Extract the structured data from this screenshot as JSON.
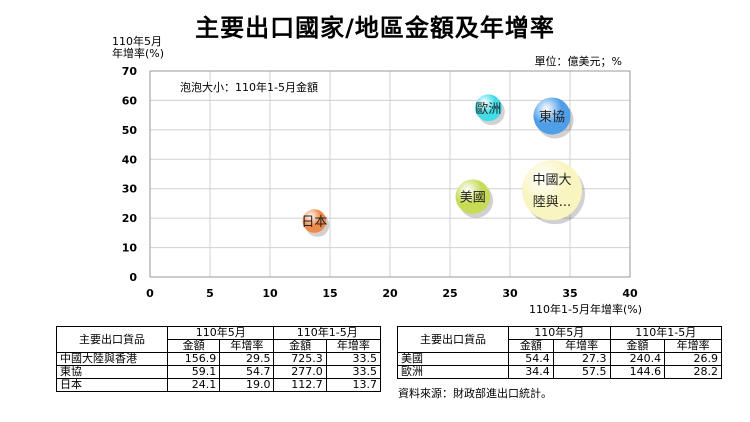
{
  "title": "主要出口國家/地區金額及年增率",
  "unit_note": "單位：億美元；%",
  "chart_data": {
    "type": "scatter",
    "title": "主要出口國家/地區金額及年增率",
    "ylabel_lines": [
      "110年5月",
      "年增率(%)"
    ],
    "xlabel": "110年1-5月年增率(%)",
    "annotation": "泡泡大小：110年1-5月金額",
    "xlim": [
      0,
      40
    ],
    "ylim": [
      0,
      70
    ],
    "xticks": [
      0,
      5,
      10,
      15,
      20,
      25,
      30,
      35,
      40
    ],
    "yticks": [
      0,
      10,
      20,
      30,
      40,
      50,
      60,
      70
    ],
    "grid": true,
    "points": [
      {
        "label": "日本",
        "lines": [
          "日本"
        ],
        "x": 13.7,
        "y": 19.0,
        "size": 112.7,
        "color": "#f08a4b"
      },
      {
        "label": "美國",
        "lines": [
          "美國"
        ],
        "x": 26.9,
        "y": 27.3,
        "size": 240.4,
        "color": "#c7db57"
      },
      {
        "label": "歐洲",
        "lines": [
          "歐洲"
        ],
        "x": 28.2,
        "y": 57.5,
        "size": 144.6,
        "color": "#40dce8"
      },
      {
        "label": "東協",
        "lines": [
          "東協"
        ],
        "x": 33.5,
        "y": 54.7,
        "size": 277.0,
        "color": "#4f9ee8"
      },
      {
        "label": "中國大陸與...",
        "lines": [
          "中國大",
          "陸與..."
        ],
        "x": 33.5,
        "y": 29.5,
        "size": 725.3,
        "color": "#f8f5c0"
      }
    ]
  },
  "tables": {
    "left": {
      "corner": "主要出口貨品",
      "group1": "110年5月",
      "group2": "110年1-5月",
      "subheaders": [
        "金額",
        "年增率",
        "金額",
        "年增率"
      ],
      "rows": [
        [
          "中國大陸與香港",
          "156.9",
          "29.5",
          "725.3",
          "33.5"
        ],
        [
          "東協",
          "59.1",
          "54.7",
          "277.0",
          "33.5"
        ],
        [
          "日本",
          "24.1",
          "19.0",
          "112.7",
          "13.7"
        ]
      ]
    },
    "right": {
      "corner": "主要出口貨品",
      "group1": "110年5月",
      "group2": "110年1-5月",
      "subheaders": [
        "金額",
        "年增率",
        "金額",
        "年增率"
      ],
      "rows": [
        [
          "美國",
          "54.4",
          "27.3",
          "240.4",
          "26.9"
        ],
        [
          "歐洲",
          "34.4",
          "57.5",
          "144.6",
          "28.2"
        ]
      ]
    },
    "source": "資料來源：財政部進出口統計。"
  }
}
